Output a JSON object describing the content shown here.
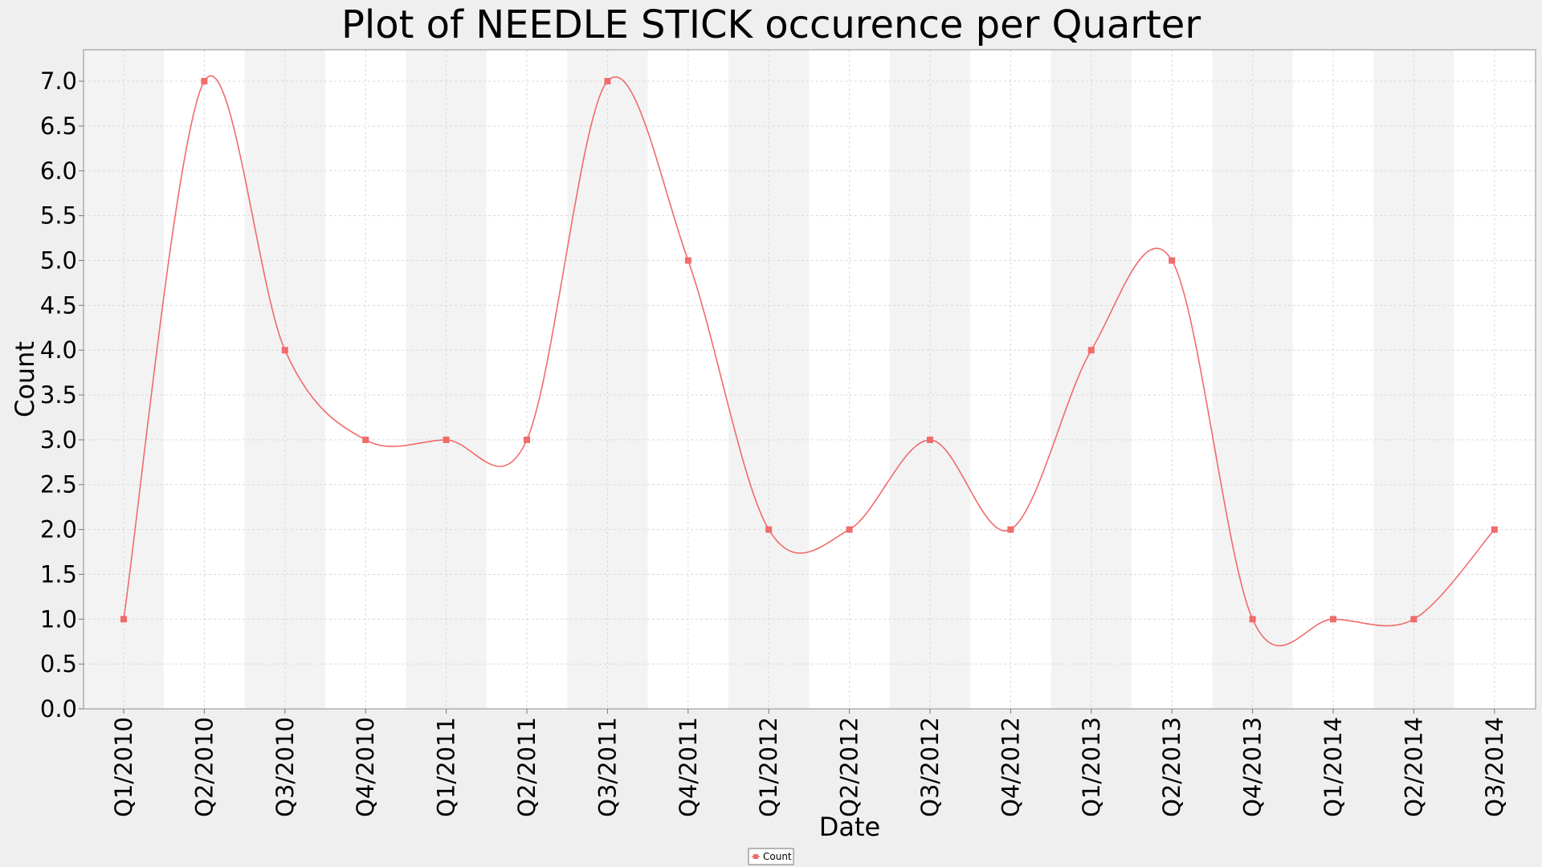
{
  "chart_data": {
    "type": "line",
    "title": "Plot of NEEDLE STICK occurence per Quarter",
    "xlabel": "Date",
    "ylabel": "Count",
    "categories": [
      "Q1/2010",
      "Q2/2010",
      "Q3/2010",
      "Q4/2010",
      "Q1/2011",
      "Q2/2011",
      "Q3/2011",
      "Q4/2011",
      "Q1/2012",
      "Q2/2012",
      "Q3/2012",
      "Q4/2012",
      "Q1/2013",
      "Q2/2013",
      "Q4/2013",
      "Q1/2014",
      "Q2/2014",
      "Q3/2014"
    ],
    "series": [
      {
        "name": "Count",
        "values": [
          1,
          7,
          4,
          3,
          3,
          3,
          7,
          5,
          2,
          2,
          3,
          2,
          4,
          5,
          1,
          1,
          1,
          2
        ],
        "color": "#f06b6b"
      }
    ],
    "y_ticks": [
      "0.0",
      "0.5",
      "1.0",
      "1.5",
      "2.0",
      "2.5",
      "3.0",
      "3.5",
      "4.0",
      "4.5",
      "5.0",
      "5.5",
      "6.0",
      "6.5",
      "7.0"
    ],
    "ylim": [
      0,
      7.35
    ],
    "grid": true,
    "interpolation": "smooth",
    "band_colors": [
      "#f3f3f3",
      "#ffffff"
    ],
    "legend": {
      "position": "bottom-center",
      "entries": [
        "Count"
      ]
    }
  }
}
